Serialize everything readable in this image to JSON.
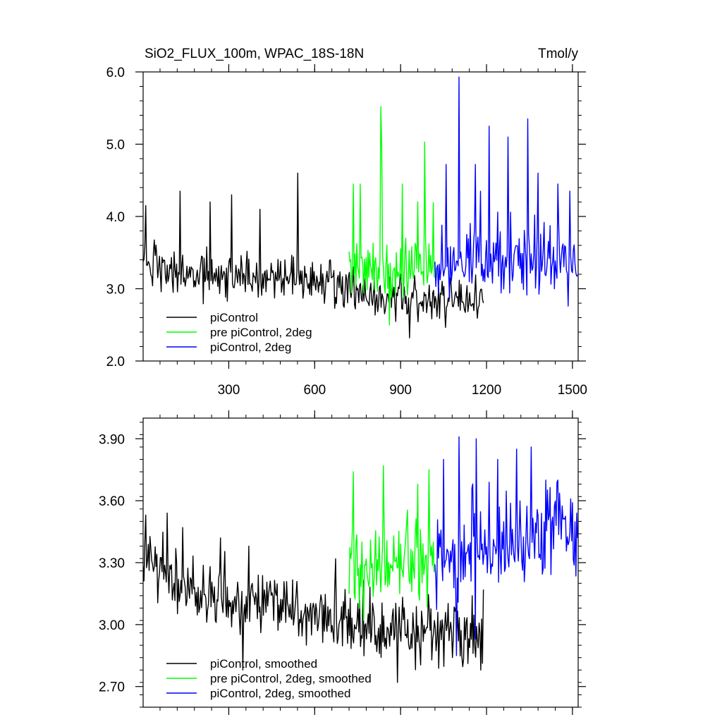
{
  "chart_data": [
    {
      "type": "line",
      "title_left": "SiO2_FLUX_100m, WPAC_18S-18N",
      "title_right": "Tmol/y",
      "xlim": [
        1,
        1520
      ],
      "ylim": [
        2.0,
        6.0
      ],
      "x_ticks": [
        300,
        600,
        900,
        1200,
        1500
      ],
      "x_tick_labels": [
        "300",
        "600",
        "900",
        "1200",
        "1500"
      ],
      "y_ticks": [
        2.0,
        3.0,
        4.0,
        5.0,
        6.0
      ],
      "y_tick_labels": [
        "2.0",
        "3.0",
        "4.0",
        "5.0",
        "6.0"
      ],
      "legend_position": "bottom-left",
      "series": [
        {
          "name": "piControl",
          "color": "#000000",
          "x_start": 1,
          "x_end": 1190,
          "base": [
            3.45,
            3.2,
            3.15,
            3.15,
            3.15,
            3.1,
            3.1,
            2.95,
            2.9,
            2.85,
            2.85,
            2.85
          ],
          "noise": 0.22,
          "spikes": [
            [
              10,
              4.15
            ],
            [
              130,
              4.35
            ],
            [
              235,
              4.2
            ],
            [
              310,
              4.3
            ],
            [
              410,
              4.1
            ],
            [
              540,
              4.6
            ],
            [
              930,
              2.32
            ]
          ]
        },
        {
          "name": "pre piControl, 2deg",
          "color": "#00ff00",
          "x_start": 720,
          "x_end": 1020,
          "base": [
            3.3,
            3.3,
            3.25,
            3.3,
            3.3
          ],
          "noise": 0.35,
          "spikes": [
            [
              735,
              4.45
            ],
            [
              830,
              5.52
            ],
            [
              835,
              4.95
            ],
            [
              905,
              4.45
            ],
            [
              985,
              5.03
            ],
            [
              760,
              4.45
            ],
            [
              860,
              2.5
            ]
          ]
        },
        {
          "name": "piControl, 2deg",
          "color": "#0000ff",
          "x_start": 1020,
          "x_end": 1520,
          "base": [
            3.3,
            3.3,
            3.35,
            3.35,
            3.35,
            3.35
          ],
          "noise": 0.35,
          "spikes": [
            [
              1060,
              4.72
            ],
            [
              1105,
              5.93
            ],
            [
              1160,
              4.72
            ],
            [
              1210,
              5.25
            ],
            [
              1275,
              5.1
            ],
            [
              1345,
              5.35
            ],
            [
              1380,
              4.6
            ],
            [
              1450,
              4.45
            ],
            [
              1490,
              4.35
            ]
          ]
        }
      ]
    },
    {
      "type": "line",
      "xlim": [
        1,
        1520
      ],
      "ylim": [
        2.6,
        4.0
      ],
      "x_ticks": [
        300,
        600,
        900,
        1200,
        1500
      ],
      "y_ticks": [
        2.7,
        3.0,
        3.3,
        3.6,
        3.9
      ],
      "y_tick_labels": [
        "2.70",
        "3.00",
        "3.30",
        "3.60",
        "3.90"
      ],
      "legend_position": "bottom-left",
      "series": [
        {
          "name": "piControl, smoothed",
          "color": "#000000",
          "x_start": 1,
          "x_end": 1190,
          "base": [
            3.35,
            3.2,
            3.12,
            3.12,
            3.1,
            3.08,
            3.05,
            2.98,
            2.97,
            2.95,
            2.95,
            2.95
          ],
          "noise": 0.11,
          "spikes": [
            [
              10,
              3.53
            ],
            [
              85,
              3.54
            ],
            [
              140,
              3.47
            ],
            [
              270,
              3.42
            ],
            [
              370,
              3.38
            ],
            [
              350,
              2.78
            ],
            [
              890,
              2.72
            ],
            [
              1180,
              2.78
            ],
            [
              1190,
              3.17
            ]
          ]
        },
        {
          "name": "pre piControl, 2deg, smoothed",
          "color": "#00ff00",
          "x_start": 720,
          "x_end": 1020,
          "base": [
            3.3,
            3.28,
            3.25,
            3.3,
            3.35
          ],
          "noise": 0.15,
          "spikes": [
            [
              735,
              3.74
            ],
            [
              840,
              3.77
            ],
            [
              960,
              3.68
            ],
            [
              1000,
              3.75
            ],
            [
              770,
              3.02
            ]
          ]
        },
        {
          "name": "piControl, 2deg, smoothed",
          "color": "#0000ff",
          "x_start": 1020,
          "x_end": 1520,
          "base": [
            3.3,
            3.35,
            3.35,
            3.4,
            3.45,
            3.45
          ],
          "noise": 0.16,
          "spikes": [
            [
              1050,
              3.8
            ],
            [
              1105,
              3.91
            ],
            [
              1165,
              3.9
            ],
            [
              1240,
              3.8
            ],
            [
              1305,
              3.85
            ],
            [
              1355,
              3.86
            ],
            [
              1450,
              3.7
            ],
            [
              1095,
              2.85
            ],
            [
              1160,
              2.93
            ]
          ]
        }
      ]
    }
  ]
}
